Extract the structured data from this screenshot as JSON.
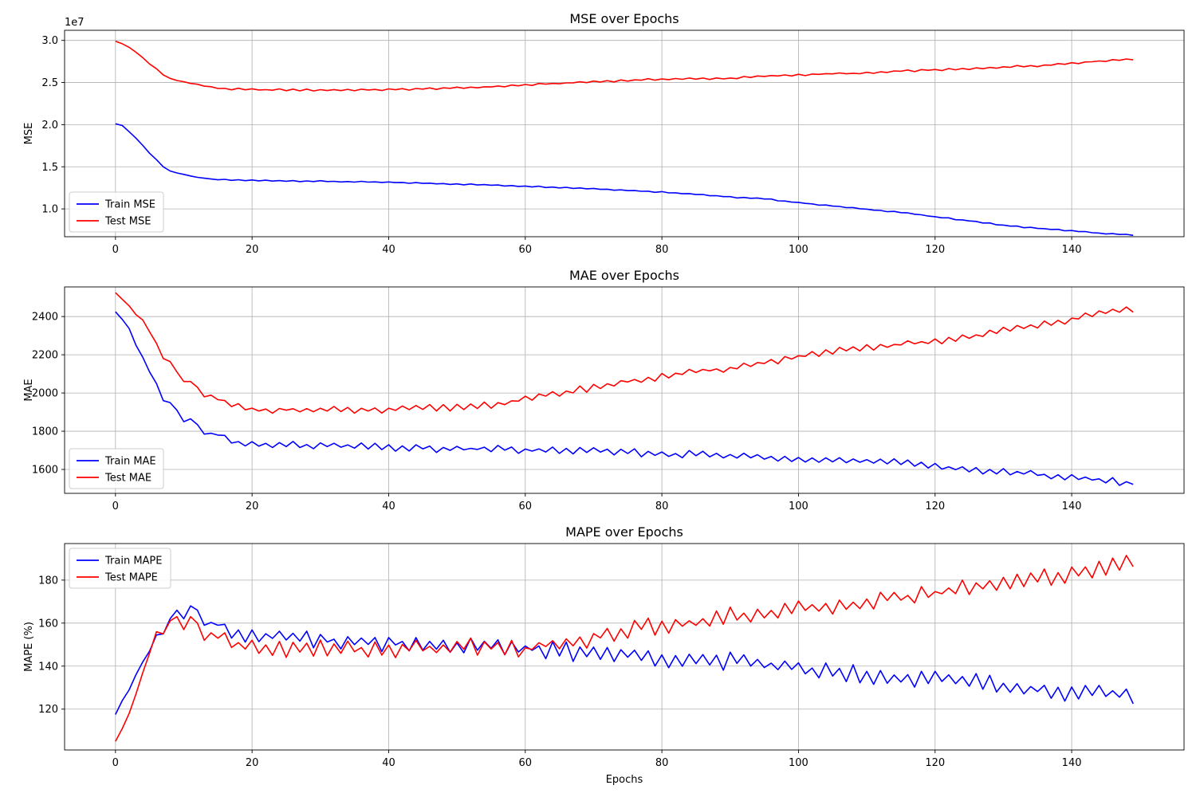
{
  "chart_data": [
    {
      "type": "line",
      "title": "MSE over Epochs",
      "xlabel": "",
      "ylabel": "MSE",
      "offset_label": "1e7",
      "xlim": [
        -7.45,
        156.45
      ],
      "ylim": [
        6.7,
        31.2
      ],
      "xticks": [
        0,
        20,
        40,
        60,
        80,
        100,
        120,
        140
      ],
      "yticks": [
        10.0,
        15.0,
        20.0,
        25.0,
        30.0
      ],
      "ytick_labels": [
        "1.0",
        "1.5",
        "2.0",
        "2.5",
        "3.0"
      ],
      "grid": true,
      "legend_position": "lower-left",
      "series": [
        {
          "name": "Train MSE",
          "color": "#0000ff",
          "x_start": 0,
          "x_step": 1,
          "anchors": [
            [
              0,
              20.1
            ],
            [
              1,
              19.9
            ],
            [
              3,
              18.4
            ],
            [
              5,
              16.6
            ],
            [
              7,
              15.0
            ],
            [
              8,
              14.5
            ],
            [
              10,
              14.1
            ],
            [
              12,
              13.75
            ],
            [
              14,
              13.55
            ],
            [
              16,
              13.45
            ],
            [
              20,
              13.38
            ],
            [
              30,
              13.28
            ],
            [
              40,
              13.15
            ],
            [
              50,
              12.95
            ],
            [
              60,
              12.7
            ],
            [
              70,
              12.4
            ],
            [
              80,
              12.0
            ],
            [
              85,
              11.75
            ],
            [
              90,
              11.4
            ],
            [
              95,
              11.2
            ],
            [
              100,
              10.75
            ],
            [
              105,
              10.35
            ],
            [
              110,
              9.95
            ],
            [
              115,
              9.6
            ],
            [
              120,
              9.05
            ],
            [
              125,
              8.6
            ],
            [
              130,
              8.05
            ],
            [
              135,
              7.7
            ],
            [
              140,
              7.4
            ],
            [
              145,
              7.05
            ],
            [
              149,
              6.9
            ]
          ],
          "noise": 0.07
        },
        {
          "name": "Test MSE",
          "color": "#ff0000",
          "x_start": 0,
          "x_step": 1,
          "anchors": [
            [
              0,
              29.9
            ],
            [
              1,
              29.6
            ],
            [
              3,
              28.6
            ],
            [
              5,
              27.2
            ],
            [
              7,
              25.9
            ],
            [
              8,
              25.5
            ],
            [
              10,
              25.1
            ],
            [
              12,
              24.8
            ],
            [
              14,
              24.5
            ],
            [
              16,
              24.25
            ],
            [
              20,
              24.15
            ],
            [
              30,
              24.1
            ],
            [
              40,
              24.15
            ],
            [
              50,
              24.35
            ],
            [
              55,
              24.5
            ],
            [
              60,
              24.7
            ],
            [
              65,
              24.9
            ],
            [
              70,
              25.1
            ],
            [
              75,
              25.25
            ],
            [
              80,
              25.4
            ],
            [
              85,
              25.45
            ],
            [
              90,
              25.5
            ],
            [
              95,
              25.75
            ],
            [
              100,
              25.9
            ],
            [
              105,
              26.05
            ],
            [
              110,
              26.1
            ],
            [
              115,
              26.35
            ],
            [
              120,
              26.5
            ],
            [
              125,
              26.6
            ],
            [
              130,
              26.85
            ],
            [
              135,
              27.0
            ],
            [
              140,
              27.3
            ],
            [
              145,
              27.6
            ],
            [
              149,
              27.8
            ]
          ],
          "noise": 0.12
        }
      ]
    },
    {
      "type": "line",
      "title": "MAE over Epochs",
      "xlabel": "",
      "ylabel": "MAE",
      "xlim": [
        -7.45,
        156.45
      ],
      "ylim": [
        1475,
        2555
      ],
      "xticks": [
        0,
        20,
        40,
        60,
        80,
        100,
        120,
        140
      ],
      "yticks": [
        1600,
        1800,
        2000,
        2200,
        2400
      ],
      "ytick_labels": [
        "1600",
        "1800",
        "2000",
        "2200",
        "2400"
      ],
      "grid": true,
      "legend_position": "lower-left",
      "series": [
        {
          "name": "Train MAE",
          "color": "#0000ff",
          "x_start": 0,
          "x_step": 1,
          "anchors": [
            [
              0,
              2425
            ],
            [
              1,
              2385
            ],
            [
              3,
              2250
            ],
            [
              5,
              2110
            ],
            [
              6,
              2050
            ],
            [
              7,
              1960
            ],
            [
              9,
              1910
            ],
            [
              10,
              1850
            ],
            [
              11,
              1865
            ],
            [
              12,
              1835
            ],
            [
              13,
              1785
            ],
            [
              15,
              1780
            ],
            [
              17,
              1745
            ],
            [
              20,
              1730
            ],
            [
              30,
              1725
            ],
            [
              40,
              1715
            ],
            [
              50,
              1705
            ],
            [
              55,
              1710
            ],
            [
              60,
              1700
            ],
            [
              65,
              1700
            ],
            [
              70,
              1695
            ],
            [
              75,
              1690
            ],
            [
              80,
              1680
            ],
            [
              85,
              1680
            ],
            [
              90,
              1670
            ],
            [
              95,
              1665
            ],
            [
              100,
              1660
            ],
            [
              105,
              1650
            ],
            [
              110,
              1640
            ],
            [
              115,
              1635
            ],
            [
              120,
              1620
            ],
            [
              125,
              1600
            ],
            [
              130,
              1585
            ],
            [
              135,
              1575
            ],
            [
              140,
              1560
            ],
            [
              145,
              1540
            ],
            [
              149,
              1530
            ]
          ],
          "noise": 20
        },
        {
          "name": "Test MAE",
          "color": "#ff0000",
          "x_start": 0,
          "x_step": 1,
          "anchors": [
            [
              0,
              2525
            ],
            [
              1,
              2490
            ],
            [
              3,
              2410
            ],
            [
              5,
              2320
            ],
            [
              6,
              2260
            ],
            [
              7,
              2180
            ],
            [
              9,
              2110
            ],
            [
              10,
              2060
            ],
            [
              11,
              2060
            ],
            [
              12,
              2030
            ],
            [
              13,
              1980
            ],
            [
              15,
              1965
            ],
            [
              17,
              1935
            ],
            [
              20,
              1915
            ],
            [
              30,
              1910
            ],
            [
              40,
              1910
            ],
            [
              45,
              1920
            ],
            [
              50,
              1925
            ],
            [
              55,
              1940
            ],
            [
              60,
              1965
            ],
            [
              65,
              2000
            ],
            [
              70,
              2030
            ],
            [
              75,
              2060
            ],
            [
              80,
              2085
            ],
            [
              85,
              2110
            ],
            [
              90,
              2130
            ],
            [
              95,
              2160
            ],
            [
              100,
              2190
            ],
            [
              105,
              2215
            ],
            [
              110,
              2235
            ],
            [
              115,
              2255
            ],
            [
              120,
              2270
            ],
            [
              125,
              2295
            ],
            [
              130,
              2325
            ],
            [
              135,
              2360
            ],
            [
              140,
              2385
            ],
            [
              145,
              2420
            ],
            [
              149,
              2440
            ]
          ],
          "noise": 20
        }
      ]
    },
    {
      "type": "line",
      "title": "MAPE over Epochs",
      "xlabel": "Epochs",
      "ylabel": "MAPE (%)",
      "xlim": [
        -7.45,
        156.45
      ],
      "ylim": [
        101,
        197
      ],
      "xticks": [
        0,
        20,
        40,
        60,
        80,
        100,
        120,
        140
      ],
      "yticks": [
        120,
        140,
        160,
        180
      ],
      "ytick_labels": [
        "120",
        "140",
        "160",
        "180"
      ],
      "grid": true,
      "legend_position": "upper-left",
      "series": [
        {
          "name": "Train MAPE",
          "color": "#0000ff",
          "x_start": 0,
          "x_step": 1,
          "anchors": [
            [
              0,
              117.5
            ],
            [
              1,
              124
            ],
            [
              2,
              129
            ],
            [
              3,
              136
            ],
            [
              4,
              142
            ],
            [
              5,
              147
            ],
            [
              6,
              154.5
            ],
            [
              7,
              155
            ],
            [
              8,
              162
            ],
            [
              9,
              166
            ],
            [
              10,
              162
            ],
            [
              11,
              168
            ],
            [
              12,
              166
            ],
            [
              13,
              159
            ],
            [
              15,
              159
            ],
            [
              17,
              157
            ],
            [
              20,
              154
            ],
            [
              25,
              153
            ],
            [
              30,
              152
            ],
            [
              35,
              152
            ],
            [
              40,
              151
            ],
            [
              45,
              150
            ],
            [
              50,
              150
            ],
            [
              55,
              149
            ],
            [
              60,
              148
            ],
            [
              65,
              147
            ],
            [
              70,
              146
            ],
            [
              75,
              145
            ],
            [
              80,
              144
            ],
            [
              85,
              143
            ],
            [
              90,
              142
            ],
            [
              95,
              141
            ],
            [
              100,
              139
            ],
            [
              105,
              138
            ],
            [
              110,
              136
            ],
            [
              115,
              135
            ],
            [
              120,
              134
            ],
            [
              125,
              133
            ],
            [
              130,
              131
            ],
            [
              135,
              129
            ],
            [
              140,
              128
            ],
            [
              145,
              127
            ],
            [
              149,
              126
            ]
          ],
          "noise": 4.5
        },
        {
          "name": "Test MAPE",
          "color": "#ff0000",
          "x_start": 0,
          "x_step": 1,
          "anchors": [
            [
              0,
              105
            ],
            [
              1,
              111
            ],
            [
              2,
              118
            ],
            [
              3,
              127
            ],
            [
              4,
              137
            ],
            [
              5,
              146
            ],
            [
              6,
              156
            ],
            [
              7,
              155
            ],
            [
              8,
              161
            ],
            [
              9,
              163
            ],
            [
              10,
              157
            ],
            [
              11,
              163
            ],
            [
              12,
              160
            ],
            [
              13,
              152
            ],
            [
              15,
              153
            ],
            [
              17,
              150
            ],
            [
              20,
              149
            ],
            [
              25,
              148
            ],
            [
              30,
              148
            ],
            [
              35,
              148
            ],
            [
              40,
              148
            ],
            [
              45,
              148
            ],
            [
              50,
              149
            ],
            [
              55,
              149
            ],
            [
              60,
              148
            ],
            [
              65,
              151
            ],
            [
              70,
              153
            ],
            [
              75,
              157
            ],
            [
              80,
              159
            ],
            [
              85,
              161
            ],
            [
              90,
              163
            ],
            [
              95,
              165
            ],
            [
              100,
              166
            ],
            [
              105,
              168
            ],
            [
              110,
              170
            ],
            [
              115,
              172
            ],
            [
              120,
              174
            ],
            [
              125,
              177
            ],
            [
              130,
              179
            ],
            [
              135,
              181
            ],
            [
              140,
              183
            ],
            [
              145,
              186
            ],
            [
              149,
              188
            ]
          ],
          "noise": 4.5
        }
      ]
    }
  ]
}
